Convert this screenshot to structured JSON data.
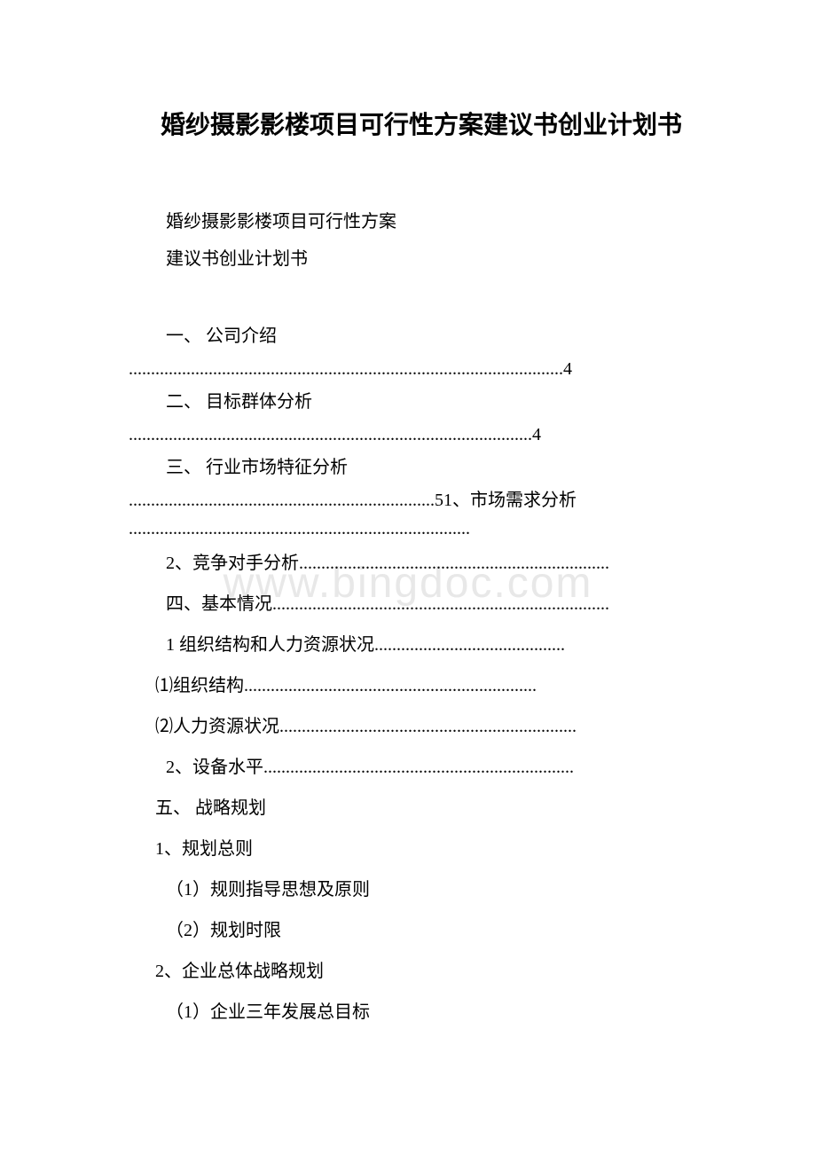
{
  "title": "婚纱摄影影楼项目可行性方案建议书创业计划书",
  "subtitle1": "婚纱摄影影楼项目可行性方案",
  "subtitle2": "建议书创业计划书",
  "watermark": "www.bingdoc.com",
  "toc": {
    "item1_heading": "一、 公司介绍",
    "item1_dots": "..................................................................................................4",
    "item2_heading": "二、 目标群体分析",
    "item2_dots": "...........................................................................................4",
    "item3_heading": "三、 行业市场特征分析",
    "item3_dots_part1": ".....................................................................51、市场需求分析",
    "item3_dots_part2": ".............................................................................",
    "item4": "2、竞争对手分析......................................................................",
    "item5": "四、基本情况............................................................................",
    "item6": "1 组织结构和人力资源状况...........................................",
    "item7": "⑴组织结构..................................................................",
    "item8": "⑵人力资源状况...................................................................",
    "item9": " 2、设备水平......................................................................",
    "item10": "五、 战略规划",
    "item11": "1、规划总则",
    "item12": "（1）规则指导思想及原则",
    "item13": "（2）规划时限",
    "item14": "2、企业总体战略规划",
    "item15": "（1）企业三年发展总目标"
  },
  "colors": {
    "text": "#000000",
    "background": "#ffffff",
    "watermark": "#e8e8e8"
  },
  "typography": {
    "title_fontsize": 28,
    "body_fontsize": 20,
    "watermark_fontsize": 48,
    "font_family": "SimSun"
  }
}
